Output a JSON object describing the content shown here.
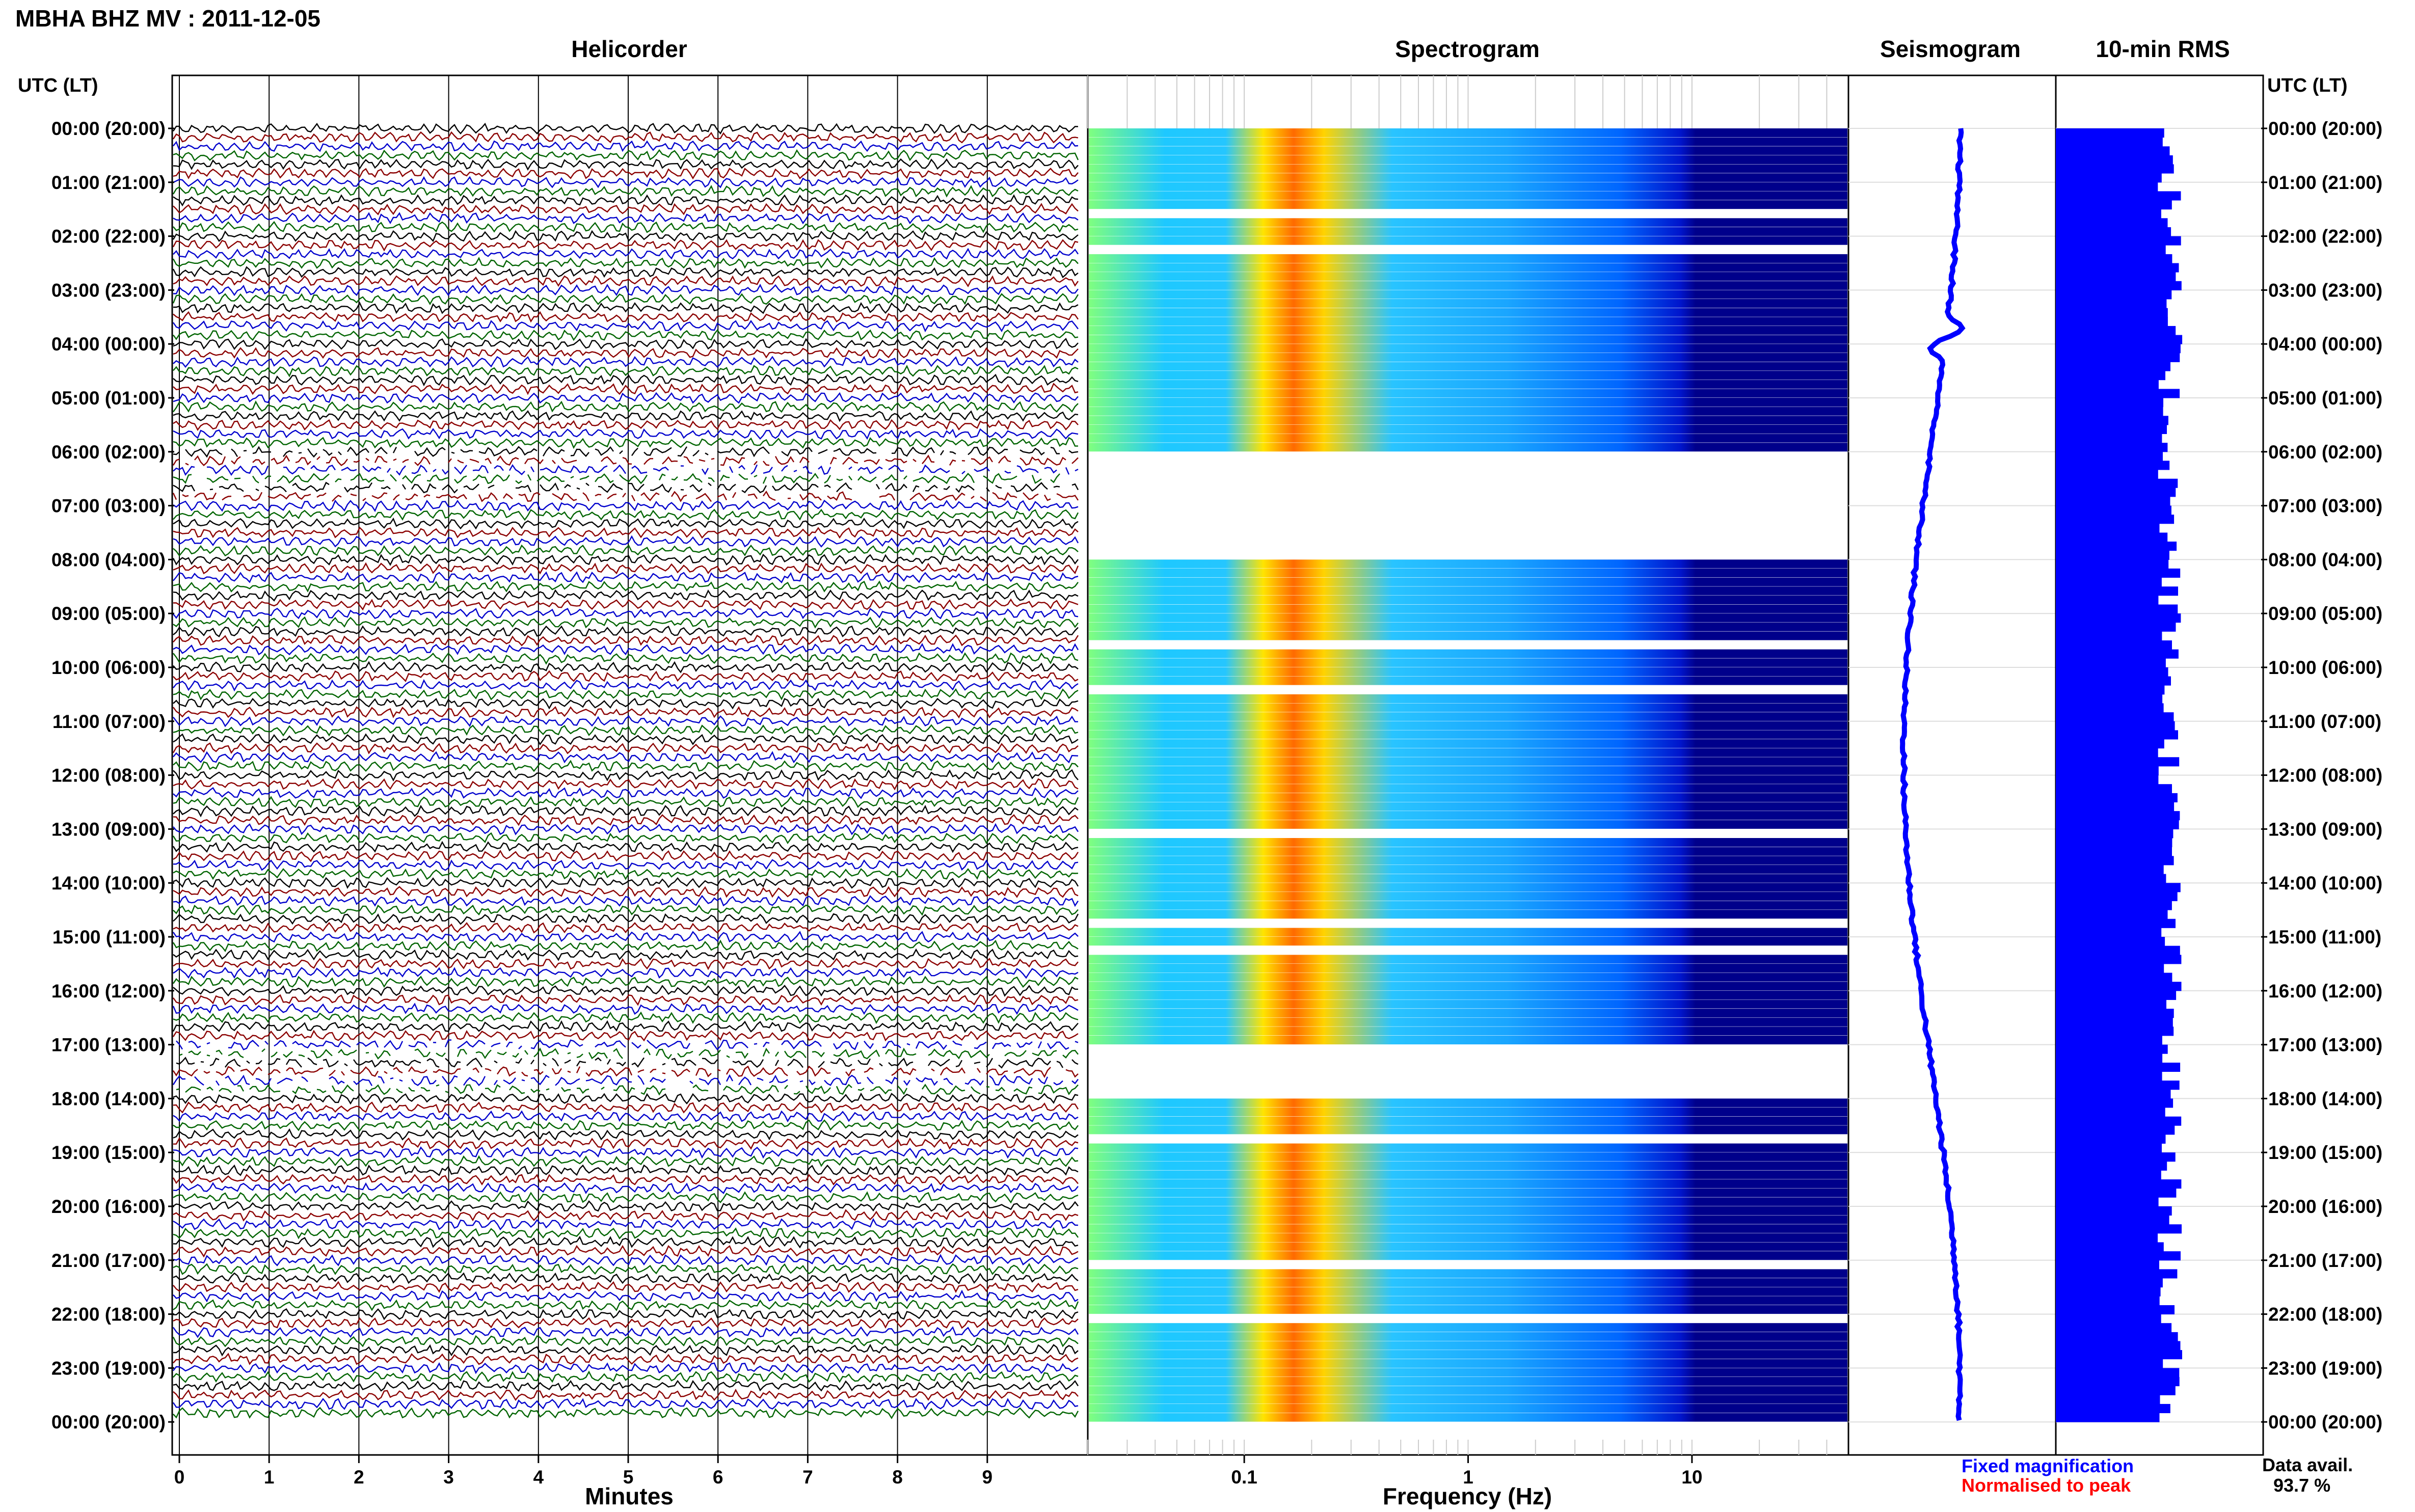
{
  "page": {
    "title": "MBHA BHZ MV : 2011-12-05",
    "data_avail_label": "Data avail.",
    "data_avail_value": "93.7 %",
    "legend_fixed": "Fixed magnification",
    "legend_normalised": "Normalised to peak",
    "colors": {
      "fixed": "#0000ff",
      "normalised": "#ff0000",
      "rms_bar": "#0000ff",
      "seismogram": "#0000ff",
      "spectrogram_low": "#00008b",
      "spectrogram_high": "#ff0000",
      "trace_cycle": [
        "#000000",
        "#8b0000",
        "#0000cd",
        "#006400"
      ]
    }
  },
  "chart_data": [
    {
      "type": "line",
      "title": "Helicorder",
      "xlabel": "Minutes",
      "ylabel": "UTC (LT)",
      "x_ticks": [
        "0",
        "1",
        "2",
        "3",
        "4",
        "5",
        "6",
        "7",
        "8",
        "9"
      ],
      "xlim": [
        0,
        10
      ],
      "rows_per_hour": 6,
      "trace_colors": [
        "#000000",
        "#8b0000",
        "#0000cd",
        "#006400"
      ],
      "gap_hours_utc": [
        6,
        17
      ],
      "grid": true
    },
    {
      "type": "heatmap",
      "title": "Spectrogram",
      "xlabel": "Frequency (Hz)",
      "x_scale": "log",
      "xlim": [
        0.02,
        50
      ],
      "x_ticks": [
        "0.1",
        "1",
        "10"
      ],
      "peak_frequency_hz": 0.22,
      "no_data_hours_utc": [
        6,
        7,
        17
      ],
      "colormap": "jet"
    },
    {
      "type": "line",
      "title": "Seismogram",
      "color": "#0000ff"
    },
    {
      "type": "bar",
      "title": "10-min RMS",
      "orientation": "horizontal",
      "bins_per_hour": 6,
      "relative_level": 0.55,
      "color": "#0000ff"
    }
  ],
  "time_axis": {
    "label_left": "UTC (LT)",
    "label_right": "UTC (LT)",
    "ticks": [
      "00:00 (20:00)",
      "01:00 (21:00)",
      "02:00 (22:00)",
      "03:00 (23:00)",
      "04:00 (00:00)",
      "05:00 (01:00)",
      "06:00 (02:00)",
      "07:00 (03:00)",
      "08:00 (04:00)",
      "09:00 (05:00)",
      "10:00 (06:00)",
      "11:00 (07:00)",
      "12:00 (08:00)",
      "13:00 (09:00)",
      "14:00 (10:00)",
      "15:00 (11:00)",
      "16:00 (12:00)",
      "17:00 (13:00)",
      "18:00 (14:00)",
      "19:00 (15:00)",
      "20:00 (16:00)",
      "21:00 (17:00)",
      "22:00 (18:00)",
      "23:00 (19:00)",
      "00:00 (20:00)"
    ]
  }
}
